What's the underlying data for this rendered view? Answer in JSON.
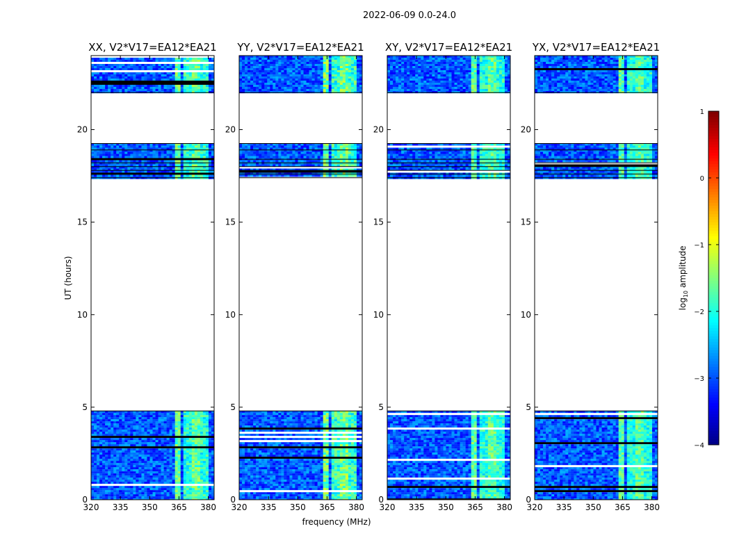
{
  "figure": {
    "title": "2022-06-09 0.0-24.0",
    "xlabel": "frequency (MHz)",
    "ylabel": "UT (hours)",
    "colorbar_label": "log10 amplitude"
  },
  "chart_data": {
    "type": "heatmap",
    "title": "2022-06-09 0.0-24.0",
    "xlabel": "frequency (MHz)",
    "ylabel": "UT (hours)",
    "xlim": [
      320,
      383
    ],
    "ylim": [
      0,
      24
    ],
    "x_ticks": [
      320,
      335,
      350,
      365,
      380
    ],
    "y_ticks": [
      0,
      5,
      10,
      15,
      20
    ],
    "colorbar": {
      "label": "log10 amplitude",
      "range": [
        -4,
        1
      ],
      "ticks": [
        1,
        0,
        -1,
        -2,
        -3,
        -4
      ],
      "colormap": "jet"
    },
    "data_segments_hours": [
      [
        0,
        4.8
      ],
      [
        17.4,
        19.25
      ],
      [
        22,
        24
      ]
    ],
    "flagged_gaps_hours": [
      [
        4.8,
        17.4
      ],
      [
        19.25,
        22
      ]
    ],
    "panels": [
      {
        "name": "xx",
        "title": "XX, V2*V17=EA12*EA21",
        "intensity": 1.0
      },
      {
        "name": "yy",
        "title": "YY, V2*V17=EA12*EA21",
        "intensity": 1.15
      },
      {
        "name": "xy",
        "title": "XY, V2*V17=EA12*EA21",
        "intensity": 0.95
      },
      {
        "name": "yx",
        "title": "YX, V2*V17=EA12*EA21",
        "intensity": 0.9
      }
    ]
  },
  "colors": {
    "axes": "#000000",
    "background": "#ffffff"
  }
}
